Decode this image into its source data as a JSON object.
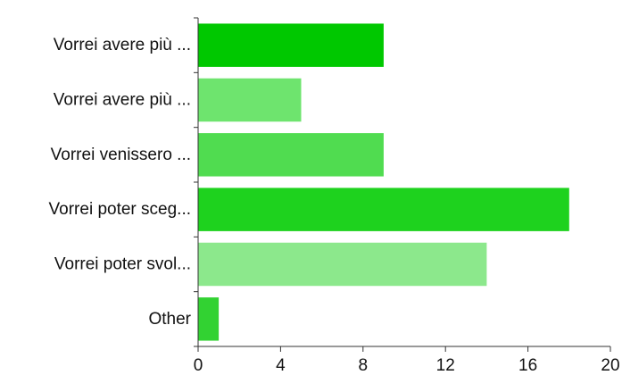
{
  "chart_data": {
    "type": "bar",
    "orientation": "horizontal",
    "categories": [
      "Vorrei avere più ...",
      "Vorrei avere più ...",
      "Vorrei venissero ...",
      "Vorrei poter sceg...",
      "Vorrei poter svol...",
      "Other"
    ],
    "values": [
      9,
      5,
      9,
      18,
      14,
      1
    ],
    "bar_colors": [
      "#00c800",
      "#6ee46e",
      "#50dc50",
      "#1ed21e",
      "#8ce88c",
      "#32d232"
    ],
    "xlim": [
      0,
      20
    ],
    "x_ticks": [
      0,
      4,
      8,
      12,
      16,
      20
    ],
    "title": "",
    "xlabel": "",
    "ylabel": "",
    "grid": false,
    "legend": "none"
  }
}
